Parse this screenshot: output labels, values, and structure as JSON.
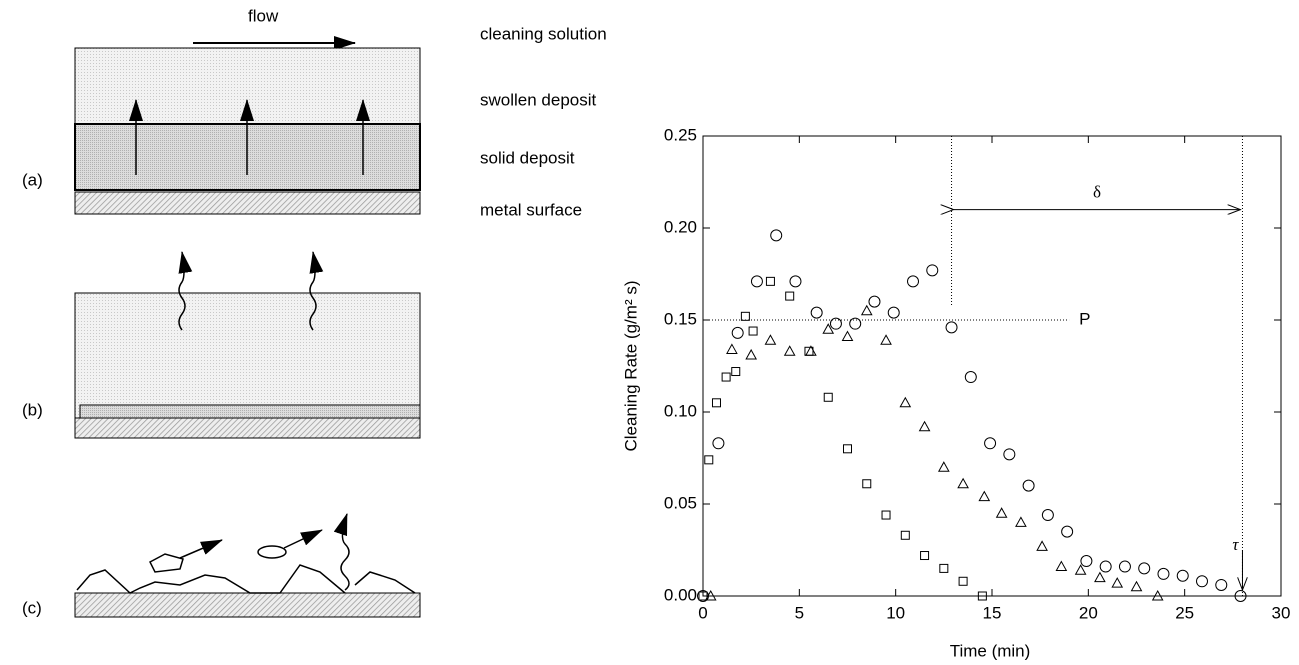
{
  "diagram": {
    "flow": "flow",
    "layers": [
      "cleaning solution",
      "swollen deposit",
      "solid deposit",
      "metal surface"
    ],
    "panels": [
      "(a)",
      "(b)",
      "(c)"
    ]
  },
  "chart_data": {
    "type": "scatter",
    "xlabel": "Time  (min)",
    "ylabel": "Cleaning Rate  (g/m² s)",
    "xlim": [
      0,
      30
    ],
    "ylim": [
      0,
      0.25
    ],
    "xticks": [
      0,
      5,
      10,
      15,
      20,
      25,
      30
    ],
    "yticks": [
      {
        "value": 0,
        "label": "0.00"
      },
      0.05,
      {
        "value": 0.1,
        "label": "0.10"
      },
      0.15,
      {
        "value": 0.2,
        "label": "0.20"
      },
      0.25
    ],
    "series": [
      {
        "marker": "circle",
        "color": "#000000",
        "x": [
          0,
          0.8,
          1.8,
          2.8,
          3.8,
          4.8,
          5.9,
          6.9,
          7.9,
          8.9,
          9.9,
          10.9,
          11.9,
          12.9,
          13.9,
          14.9,
          15.9,
          16.9,
          17.9,
          18.9,
          19.9,
          20.9,
          21.9,
          22.9,
          23.9,
          24.9,
          25.9,
          26.9,
          27.9
        ],
        "values": [
          0,
          0.083,
          0.143,
          0.171,
          0.196,
          0.171,
          0.154,
          0.148,
          0.148,
          0.16,
          0.154,
          0.171,
          0.177,
          0.146,
          0.119,
          0.083,
          0.077,
          0.06,
          0.044,
          0.035,
          0.019,
          0.016,
          0.016,
          0.015,
          0.012,
          0.011,
          0.008,
          0.006,
          0
        ]
      },
      {
        "marker": "square",
        "color": "#000000",
        "x": [
          0,
          0.3,
          0.7,
          1.2,
          1.7,
          2.2,
          2.6,
          3.5,
          4.5,
          5.5,
          6.5,
          7.5,
          8.5,
          9.5,
          10.5,
          11.5,
          12.5,
          13.5,
          14.5
        ],
        "values": [
          0,
          0.074,
          0.105,
          0.119,
          0.122,
          0.152,
          0.144,
          0.171,
          0.163,
          0.133,
          0.108,
          0.08,
          0.061,
          0.044,
          0.033,
          0.022,
          0.015,
          0.008,
          0
        ]
      },
      {
        "marker": "triangle",
        "color": "#000000",
        "x": [
          0.4,
          1.5,
          2.5,
          3.5,
          4.5,
          5.6,
          6.5,
          7.5,
          8.5,
          9.5,
          10.5,
          11.5,
          12.5,
          13.5,
          14.6,
          15.5,
          16.5,
          17.6,
          18.6,
          19.6,
          20.6,
          21.5,
          22.5,
          23.6
        ],
        "values": [
          0,
          0.134,
          0.131,
          0.139,
          0.133,
          0.133,
          0.145,
          0.141,
          0.155,
          0.139,
          0.105,
          0.092,
          0.07,
          0.061,
          0.054,
          0.045,
          0.04,
          0.027,
          0.016,
          0.014,
          0.01,
          0.007,
          0.005,
          0
        ]
      }
    ],
    "annotations": [
      {
        "text": "P",
        "x": 19,
        "y": 0.15
      },
      {
        "text": "δ",
        "x": [
          12.9,
          28
        ],
        "y": 0.21
      },
      {
        "text": "τ",
        "x": 28,
        "y": 0.025
      }
    ]
  }
}
